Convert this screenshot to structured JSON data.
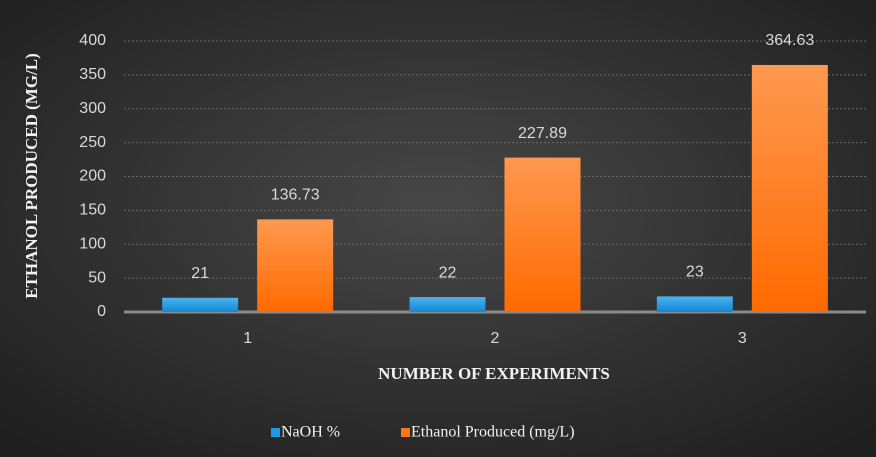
{
  "chart_data": {
    "type": "bar",
    "categories": [
      "1",
      "2",
      "3"
    ],
    "series": [
      {
        "name": "NaOH %",
        "color": "#1e9be6",
        "values": [
          21,
          22,
          23
        ]
      },
      {
        "name": "Ethanol Produced (mg/L)",
        "color": "#ff7418",
        "values": [
          136.73,
          227.89,
          364.63
        ]
      }
    ],
    "xlabel": "NUMBER OF EXPERIMENTS",
    "ylabel": "ETHANOL PRODUCED (MG/L)",
    "ylim": [
      0,
      400
    ],
    "yticks": [
      0,
      50,
      100,
      150,
      200,
      250,
      300,
      350,
      400
    ],
    "grid": true,
    "legend": "bottom"
  }
}
